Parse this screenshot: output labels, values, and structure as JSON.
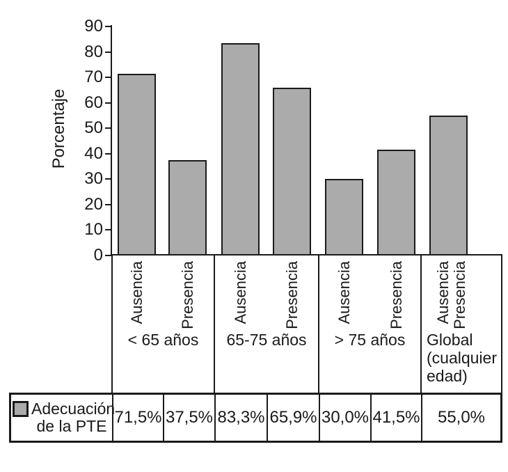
{
  "colors": {
    "bar_fill": "#ABABAB",
    "bar_border": "#1A1A1A",
    "axis_line": "#1A1A1A",
    "text": "#1A1A1A",
    "background": "#FFFFFF"
  },
  "chart_data": {
    "type": "bar",
    "title": "",
    "ylabel": "Porcentaje",
    "xlabel": "",
    "ylim": [
      0,
      90
    ],
    "yticks": [
      0,
      10,
      20,
      30,
      40,
      50,
      60,
      70,
      80,
      90
    ],
    "grid": false,
    "series_name": "Adecuación de la PTE",
    "legend_position": "bottom-table",
    "groups": [
      {
        "label": "< 65 años",
        "bars": [
          {
            "labels": [
              "Ausencia"
            ],
            "value": 71.5
          },
          {
            "labels": [
              "Presencia"
            ],
            "value": 37.5
          }
        ]
      },
      {
        "label": "65-75 años",
        "bars": [
          {
            "labels": [
              "Ausencia"
            ],
            "value": 83.3
          },
          {
            "labels": [
              "Presencia"
            ],
            "value": 65.9
          }
        ]
      },
      {
        "label": "> 75 años",
        "bars": [
          {
            "labels": [
              "Ausencia"
            ],
            "value": 30.0
          },
          {
            "labels": [
              "Presencia"
            ],
            "value": 41.5
          }
        ]
      },
      {
        "label": "Global (cualquier edad)",
        "bars": [
          {
            "labels": [
              "Ausencia",
              "Presencia"
            ],
            "value": 55.0
          }
        ]
      }
    ]
  },
  "table": {
    "legend_label": "Adecuación de la PTE",
    "values": [
      "71,5%",
      "37,5%",
      "83,3%",
      "65,9%",
      "30,0%",
      "41,5%",
      "55,0%"
    ]
  }
}
